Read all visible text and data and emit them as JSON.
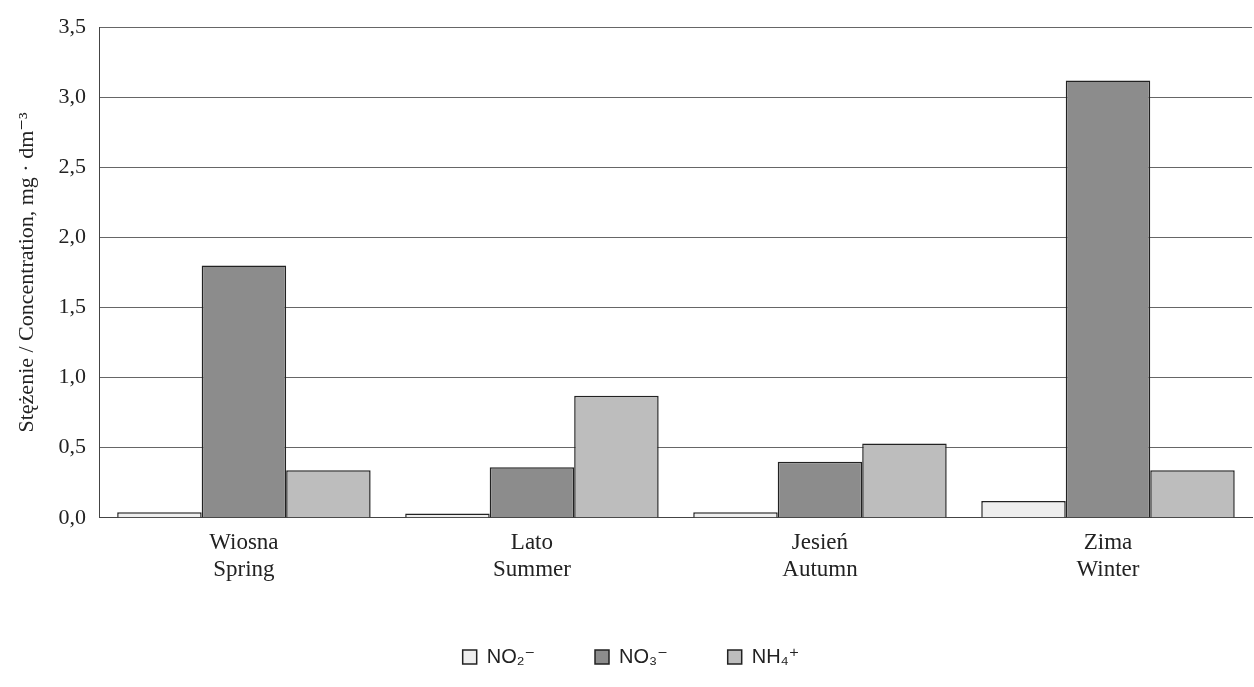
{
  "chart_data": {
    "type": "bar",
    "ylabel": "Stężenie / Concentration, mg · dm⁻³",
    "categories": [
      "Wiosna\nSpring",
      "Lato\nSummer",
      "Jesień\nAutumn",
      "Zima\nWinter"
    ],
    "series": [
      {
        "name": "NO₂⁻",
        "color": "#eeeeee",
        "values": [
          0.04,
          0.03,
          0.04,
          0.12
        ]
      },
      {
        "name": "NO₃⁻",
        "color": "#8c8c8c",
        "values": [
          1.8,
          0.36,
          0.4,
          3.12
        ]
      },
      {
        "name": "NH₄⁺",
        "color": "#bdbdbd",
        "values": [
          0.34,
          0.87,
          0.53,
          0.34
        ]
      }
    ],
    "ylim": [
      0,
      3.5
    ],
    "yticks": [
      {
        "value": 0,
        "label": "0,0"
      },
      {
        "value": 0.5,
        "label": "0,5"
      },
      {
        "value": 1,
        "label": "1,0"
      },
      {
        "value": 1.5,
        "label": "1,5"
      },
      {
        "value": 2,
        "label": "2,0"
      },
      {
        "value": 2.5,
        "label": "2,5"
      },
      {
        "value": 3,
        "label": "3,0"
      },
      {
        "value": 3.5,
        "label": "3,5"
      }
    ],
    "grid": "y",
    "legend": "bottom"
  }
}
